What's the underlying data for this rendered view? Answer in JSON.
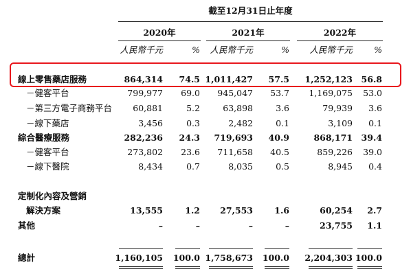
{
  "header": {
    "period": "截至12月31日止年度",
    "years": [
      "2020年",
      "2021年",
      "2022年"
    ],
    "units": [
      "人民幣千元",
      "%",
      "人民幣千元",
      "%",
      "人民幣千元",
      "%"
    ]
  },
  "table": {
    "rows": [
      {
        "label": [
          "線上零售藥店服務"
        ],
        "cells": [
          "864,314",
          "74.5",
          "1,011,427",
          "57.5",
          "1,252,123",
          "56.8"
        ]
      },
      {
        "label": [
          "－健客平台"
        ],
        "cells": [
          "799,977",
          "69.0",
          "945,047",
          "53.7",
          "1,169,075",
          "53.0"
        ]
      },
      {
        "label": [
          "－第三方電子商務平台"
        ],
        "cells": [
          "60,881",
          "5.2",
          "63,898",
          "3.6",
          "79,939",
          "3.6"
        ]
      },
      {
        "label": [
          "－線下藥店"
        ],
        "cells": [
          "3,456",
          "0.3",
          "2,482",
          "0.1",
          "3,109",
          "0.1"
        ]
      },
      {
        "label": [
          "綜合醫療服務"
        ],
        "cells": [
          "282,236",
          "24.3",
          "719,693",
          "40.9",
          "868,171",
          "39.4"
        ]
      },
      {
        "label": [
          "－健客平台"
        ],
        "cells": [
          "273,802",
          "23.6",
          "711,658",
          "40.5",
          "859,226",
          "39.0"
        ]
      },
      {
        "label": [
          "－線下醫院"
        ],
        "cells": [
          "8,434",
          "0.7",
          "8,035",
          "0.5",
          "8,945",
          "0.4"
        ]
      },
      {
        "label": [
          "定制化內容及營銷",
          "解決方案"
        ],
        "cells": [
          "13,555",
          "1.2",
          "27,553",
          "1.6",
          "60,254",
          "2.7"
        ]
      },
      {
        "label": [
          "其他"
        ],
        "cells": [
          "–",
          "–",
          "–",
          "–",
          "23,755",
          "1.1"
        ]
      },
      {
        "label": [
          "總計"
        ],
        "cells": [
          "1,160,105",
          "100.0",
          "1,758,673",
          "100.0",
          "2,204,303",
          "100.0"
        ]
      }
    ]
  }
}
